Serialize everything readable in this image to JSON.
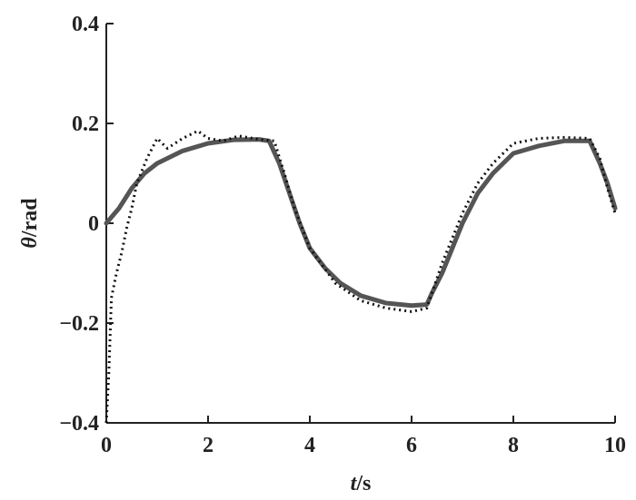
{
  "chart_data": {
    "type": "line",
    "xlabel_italic": "t",
    "xlabel_rest": "/s",
    "ylabel_italic": "θ",
    "ylabel_rest": "/rad",
    "xlim": [
      0,
      10
    ],
    "ylim": [
      -0.4,
      0.4
    ],
    "xticks": [
      0,
      2,
      4,
      6,
      8,
      10
    ],
    "yticks": [
      0.4,
      0.2,
      0,
      -0.2,
      -0.4
    ],
    "xtick_labels": [
      "0",
      "2",
      "4",
      "6",
      "8",
      "10"
    ],
    "ytick_labels": [
      "0.4",
      "0.2",
      "0",
      "−0.2",
      "−0.4"
    ],
    "grid": false,
    "series": [
      {
        "style": "solid",
        "color": "#555555",
        "x": [
          0,
          0.25,
          0.5,
          0.75,
          1.0,
          1.5,
          2.0,
          2.5,
          3.0,
          3.2,
          3.4,
          3.6,
          3.8,
          4.0,
          4.3,
          4.6,
          5.0,
          5.5,
          6.0,
          6.3,
          6.4,
          6.6,
          6.8,
          7.0,
          7.3,
          7.6,
          8.0,
          8.5,
          9.0,
          9.5,
          9.7,
          9.85,
          10.0
        ],
        "y": [
          0.0,
          0.03,
          0.07,
          0.1,
          0.12,
          0.145,
          0.16,
          0.167,
          0.168,
          0.165,
          0.12,
          0.06,
          0.0,
          -0.05,
          -0.09,
          -0.12,
          -0.145,
          -0.16,
          -0.165,
          -0.163,
          -0.14,
          -0.1,
          -0.05,
          0.0,
          0.06,
          0.1,
          0.14,
          0.155,
          0.165,
          0.165,
          0.12,
          0.08,
          0.03
        ]
      },
      {
        "style": "dotted",
        "color": "#111111",
        "x": [
          0,
          0.05,
          0.1,
          0.2,
          0.3,
          0.4,
          0.5,
          0.6,
          0.8,
          1.0,
          1.2,
          1.5,
          1.8,
          2.0,
          2.3,
          2.6,
          3.0,
          3.3,
          3.5,
          3.7,
          4.0,
          4.5,
          5.0,
          5.5,
          6.0,
          6.3,
          6.4,
          6.6,
          6.8,
          7.0,
          7.3,
          7.6,
          8.0,
          8.5,
          9.0,
          9.5,
          9.7,
          9.85,
          10.0
        ],
        "y": [
          -0.4,
          -0.3,
          -0.15,
          -0.1,
          -0.06,
          -0.01,
          0.03,
          0.08,
          0.13,
          0.17,
          0.15,
          0.17,
          0.185,
          0.17,
          0.165,
          0.175,
          0.168,
          0.165,
          0.1,
          0.03,
          -0.05,
          -0.12,
          -0.155,
          -0.17,
          -0.177,
          -0.17,
          -0.14,
          -0.08,
          -0.03,
          0.02,
          0.08,
          0.12,
          0.16,
          0.17,
          0.172,
          0.17,
          0.13,
          0.07,
          0.02
        ]
      }
    ]
  }
}
